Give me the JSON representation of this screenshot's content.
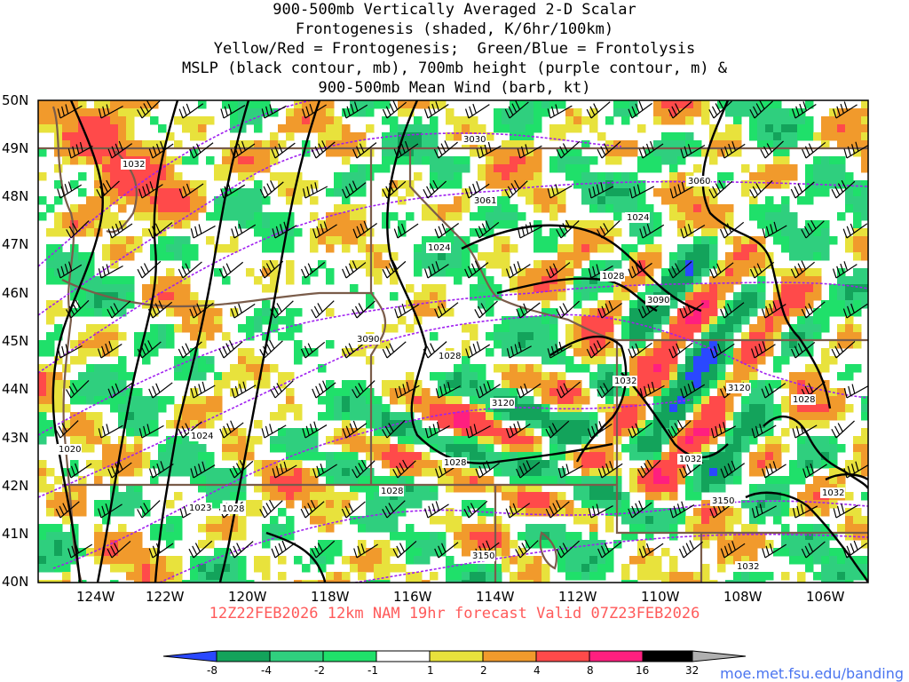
{
  "title": {
    "lines": [
      "900-500mb Vertically Averaged 2-D Scalar",
      "Frontogenesis (shaded, K/6hr/100km)",
      "Yellow/Red = Frontogenesis;  Green/Blue = Frontolysis",
      "MSLP (black contour, mb), 700mb height (purple contour, m) &",
      "900-500mb Mean Wind (barb, kt)"
    ]
  },
  "valid_line": "12Z22FEB2026 12km NAM 19hr forecast Valid 07Z23FEB2026",
  "url": "moe.met.fsu.edu/banding",
  "map": {
    "lat_labels": [
      "50N",
      "49N",
      "48N",
      "47N",
      "46N",
      "45N",
      "44N",
      "43N",
      "42N",
      "41N",
      "40N"
    ],
    "lon_labels": [
      "124W",
      "122W",
      "120W",
      "118W",
      "116W",
      "114W",
      "112W",
      "110W",
      "108W",
      "106W"
    ],
    "mslp_labels": [
      "1032",
      "1024",
      "1024",
      "1020",
      "1024",
      "1028",
      "1028",
      "1028",
      "1028",
      "1028",
      "1032",
      "1032",
      "1028",
      "1032",
      "1032",
      "1023"
    ],
    "height_labels": [
      "3030",
      "3060",
      "3061",
      "3090",
      "3090",
      "3120",
      "3120",
      "3150",
      "3150"
    ],
    "colors": {
      "mslp": "#000000",
      "height": "#a020f0",
      "borders": "#7a5c4a",
      "barbs": "#000000"
    }
  },
  "colorbar": {
    "tick_labels": [
      "-8",
      "-4",
      "-2",
      "-1",
      "1",
      "2",
      "4",
      "8",
      "16",
      "32"
    ],
    "colors": [
      "#2a48ff",
      "#13a35b",
      "#2fcf7e",
      "#1fe06a",
      "#ffffff",
      "#e8e23c",
      "#f19a2c",
      "#ff4a4a",
      "#ff1f7f",
      "#000000",
      "#b0b0b0"
    ]
  }
}
